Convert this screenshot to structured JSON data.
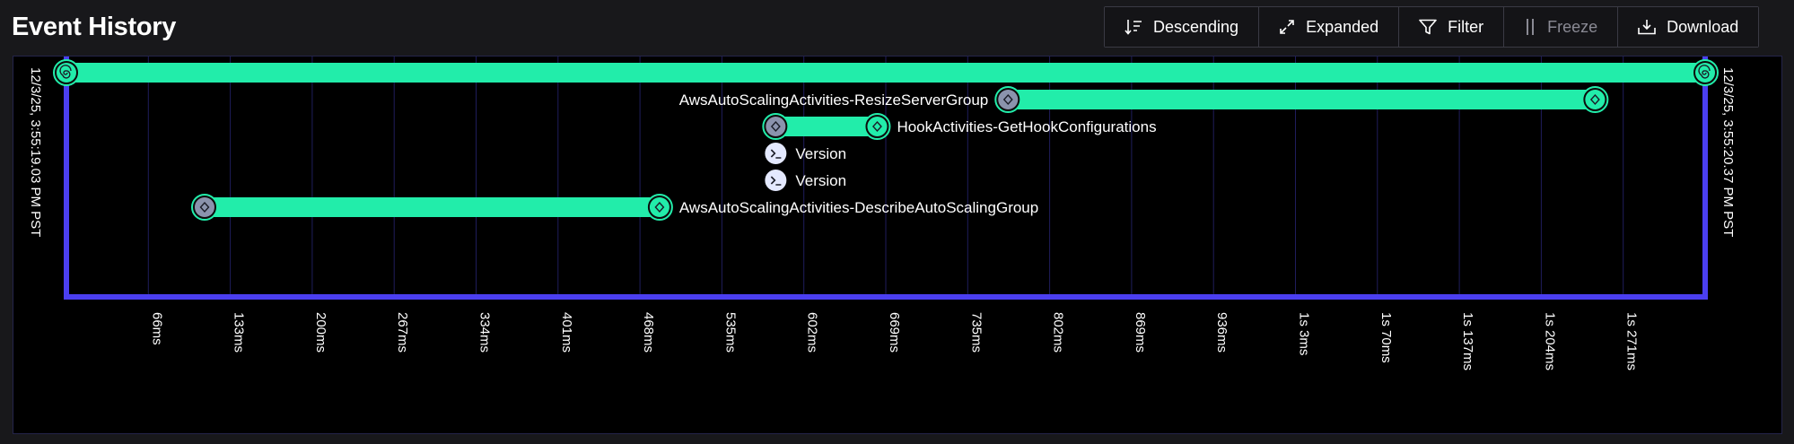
{
  "header": {
    "title": "Event History"
  },
  "toolbar": {
    "buttons": [
      {
        "id": "descending",
        "label": "Descending",
        "icon": "sort-descending-icon",
        "disabled": false
      },
      {
        "id": "expanded",
        "label": "Expanded",
        "icon": "expand-arrows-icon",
        "disabled": false
      },
      {
        "id": "filter",
        "label": "Filter",
        "icon": "filter-funnel-icon",
        "disabled": false
      },
      {
        "id": "freeze",
        "label": "Freeze",
        "icon": "pause-bars-icon",
        "disabled": true
      },
      {
        "id": "download",
        "label": "Download",
        "icon": "download-tray-icon",
        "disabled": false
      }
    ]
  },
  "timeline": {
    "start_time": "12/3/25, 3:55:19.03 PM PST",
    "end_time": "12/3/25, 3:55:20.37 PM PST",
    "tick_labels": [
      "66ms",
      "133ms",
      "200ms",
      "267ms",
      "334ms",
      "401ms",
      "468ms",
      "535ms",
      "602ms",
      "669ms",
      "735ms",
      "802ms",
      "869ms",
      "936ms",
      "1s 3ms",
      "1s 70ms",
      "1s 137ms",
      "1s 204ms",
      "1s 271ms"
    ],
    "colors": {
      "bar": "#22edaa",
      "frame": "#4b3ff0",
      "grid": "#1f1d5c",
      "pending_node": "#8b93ad",
      "marker_node": "#e4e9ff"
    },
    "events": [
      {
        "name": "",
        "type": "workflow",
        "start_ms": 0,
        "end_ms": 1340,
        "label_side": "none"
      },
      {
        "name": "AwsAutoScalingActivities-ResizeServerGroup",
        "type": "activity",
        "start_ms": 770,
        "end_ms": 1250,
        "label_side": "left"
      },
      {
        "name": "HookActivities-GetHookConfigurations",
        "type": "activity",
        "start_ms": 580,
        "end_ms": 663,
        "label_side": "right"
      },
      {
        "name": "Version",
        "type": "marker",
        "start_ms": 580,
        "label_side": "right"
      },
      {
        "name": "Version",
        "type": "marker",
        "start_ms": 580,
        "label_side": "right"
      },
      {
        "name": "AwsAutoScalingActivities-DescribeAutoScalingGroup",
        "type": "activity",
        "start_ms": 113,
        "end_ms": 485,
        "label_side": "right"
      }
    ]
  }
}
